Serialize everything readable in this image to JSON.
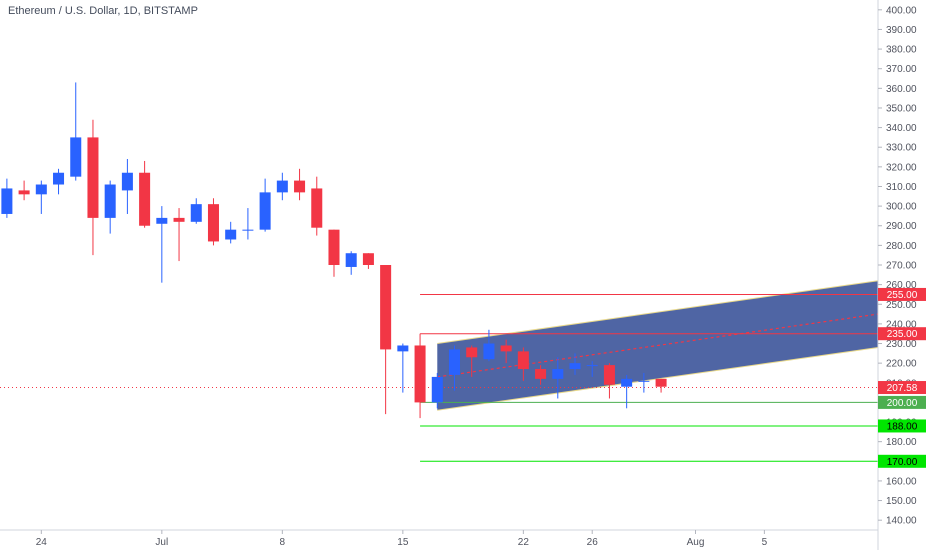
{
  "chart_data": {
    "type": "candlestick",
    "title": "Ethereum / U.S. Dollar, 1D, BITSTAMP",
    "ylim": [
      135,
      405
    ],
    "y_ticks": [
      140,
      150,
      160,
      170,
      180,
      190,
      200,
      210,
      220,
      230,
      240,
      250,
      260,
      270,
      280,
      290,
      300,
      310,
      320,
      330,
      340,
      350,
      360,
      370,
      380,
      390,
      400
    ],
    "y_tick_labels": [
      "140.00",
      "150.00",
      "160.00",
      "170.00",
      "180.00",
      "190.00",
      "200.00",
      "210.00",
      "220.00",
      "230.00",
      "240.00",
      "250.00",
      "260.00",
      "270.00",
      "280.00",
      "290.00",
      "300.00",
      "310.00",
      "320.00",
      "330.00",
      "340.00",
      "350.00",
      "360.00",
      "370.00",
      "380.00",
      "390.00",
      "400.00"
    ],
    "x_range": [
      -0.4,
      50.6
    ],
    "x_ticks": [
      {
        "x": 2,
        "label": "24"
      },
      {
        "x": 9,
        "label": "Jul"
      },
      {
        "x": 16,
        "label": "8"
      },
      {
        "x": 23,
        "label": "15"
      },
      {
        "x": 30,
        "label": "22"
      },
      {
        "x": 34,
        "label": "26"
      },
      {
        "x": 40,
        "label": "Aug"
      },
      {
        "x": 44,
        "label": "5"
      }
    ],
    "candles": [
      {
        "x": 0,
        "open": 296,
        "high": 314,
        "low": 294,
        "close": 309
      },
      {
        "x": 1,
        "open": 308,
        "high": 313,
        "low": 303,
        "close": 306
      },
      {
        "x": 2,
        "open": 306,
        "high": 313,
        "low": 296,
        "close": 311
      },
      {
        "x": 3,
        "open": 311,
        "high": 319,
        "low": 306,
        "close": 317
      },
      {
        "x": 4,
        "open": 315,
        "high": 363,
        "low": 313,
        "close": 335
      },
      {
        "x": 5,
        "open": 335,
        "high": 344,
        "low": 275,
        "close": 294
      },
      {
        "x": 6,
        "open": 294,
        "high": 313,
        "low": 286,
        "close": 311
      },
      {
        "x": 7,
        "open": 308,
        "high": 324,
        "low": 296,
        "close": 317
      },
      {
        "x": 8,
        "open": 317,
        "high": 323,
        "low": 289,
        "close": 290
      },
      {
        "x": 9,
        "open": 291,
        "high": 300,
        "low": 261,
        "close": 294
      },
      {
        "x": 10,
        "open": 294,
        "high": 299,
        "low": 272,
        "close": 292
      },
      {
        "x": 11,
        "open": 292,
        "high": 304,
        "low": 291,
        "close": 301
      },
      {
        "x": 12,
        "open": 301,
        "high": 304,
        "low": 280,
        "close": 282
      },
      {
        "x": 13,
        "open": 283,
        "high": 292,
        "low": 281,
        "close": 288
      },
      {
        "x": 14,
        "open": 288,
        "high": 299,
        "low": 283,
        "close": 288
      },
      {
        "x": 15,
        "open": 288,
        "high": 314,
        "low": 287,
        "close": 307
      },
      {
        "x": 16,
        "open": 307,
        "high": 317,
        "low": 303,
        "close": 313
      },
      {
        "x": 17,
        "open": 313,
        "high": 319,
        "low": 303,
        "close": 307
      },
      {
        "x": 18,
        "open": 309,
        "high": 315,
        "low": 285,
        "close": 289
      },
      {
        "x": 19,
        "open": 288,
        "high": 288,
        "low": 264,
        "close": 270
      },
      {
        "x": 20,
        "open": 269,
        "high": 277,
        "low": 265,
        "close": 276
      },
      {
        "x": 21,
        "open": 276,
        "high": 276,
        "low": 268,
        "close": 270
      },
      {
        "x": 22,
        "open": 270,
        "high": 270,
        "low": 194,
        "close": 227
      },
      {
        "x": 23,
        "open": 226,
        "high": 230,
        "low": 205,
        "close": 229
      },
      {
        "x": 24,
        "open": 229,
        "high": 235,
        "low": 192,
        "close": 200
      },
      {
        "x": 25,
        "open": 200,
        "high": 215,
        "low": 197,
        "close": 213
      },
      {
        "x": 26,
        "open": 214,
        "high": 229,
        "low": 206,
        "close": 227
      },
      {
        "x": 27,
        "open": 228,
        "high": 229,
        "low": 213,
        "close": 223
      },
      {
        "x": 28,
        "open": 222,
        "high": 237,
        "low": 221,
        "close": 230
      },
      {
        "x": 29,
        "open": 229,
        "high": 232,
        "low": 220,
        "close": 226
      },
      {
        "x": 30,
        "open": 226,
        "high": 228,
        "low": 211,
        "close": 217
      },
      {
        "x": 31,
        "open": 217,
        "high": 219,
        "low": 209,
        "close": 212
      },
      {
        "x": 32,
        "open": 212,
        "high": 223,
        "low": 202,
        "close": 217
      },
      {
        "x": 33,
        "open": 217,
        "high": 225,
        "low": 214,
        "close": 220
      },
      {
        "x": 34,
        "open": 219,
        "high": 221,
        "low": 213,
        "close": 219
      },
      {
        "x": 35,
        "open": 219,
        "high": 220,
        "low": 202,
        "close": 209
      },
      {
        "x": 36,
        "open": 208,
        "high": 214,
        "low": 197,
        "close": 212
      },
      {
        "x": 37,
        "open": 211,
        "high": 215,
        "low": 205,
        "close": 211
      },
      {
        "x": 38,
        "open": 212,
        "high": 212,
        "low": 205,
        "close": 208
      }
    ],
    "channel": {
      "upper": [
        {
          "x": 25,
          "y": 230
        },
        {
          "x": 50.6,
          "y": 262
        }
      ],
      "lower": [
        {
          "x": 25,
          "y": 196
        },
        {
          "x": 50.6,
          "y": 228
        }
      ],
      "mid": [
        {
          "x": 25,
          "y": 213
        },
        {
          "x": 50.6,
          "y": 245
        }
      ]
    },
    "levels": [
      {
        "value": 255,
        "label": "255.00",
        "color": "#f23645",
        "from_x": 24
      },
      {
        "value": 235,
        "label": "235.00",
        "color": "#f23645",
        "from_x": 24
      },
      {
        "value": 200,
        "label": "200.00",
        "color": "#4caf50",
        "from_x": 24
      },
      {
        "value": 188,
        "label": "188.00",
        "color": "#00e600",
        "from_x": 24
      },
      {
        "value": 170,
        "label": "170.00",
        "color": "#00e600",
        "from_x": 24
      }
    ],
    "last_price": {
      "value": 207.58,
      "label": "207.58",
      "color": "#f23645"
    },
    "colors": {
      "up": "#2962ff",
      "down": "#f23645",
      "channel_fill": "#1e3a8a",
      "channel_line": "#e8d88a",
      "axis_text": "#50535e",
      "grid": "#e6e8ee"
    },
    "grid": false
  }
}
